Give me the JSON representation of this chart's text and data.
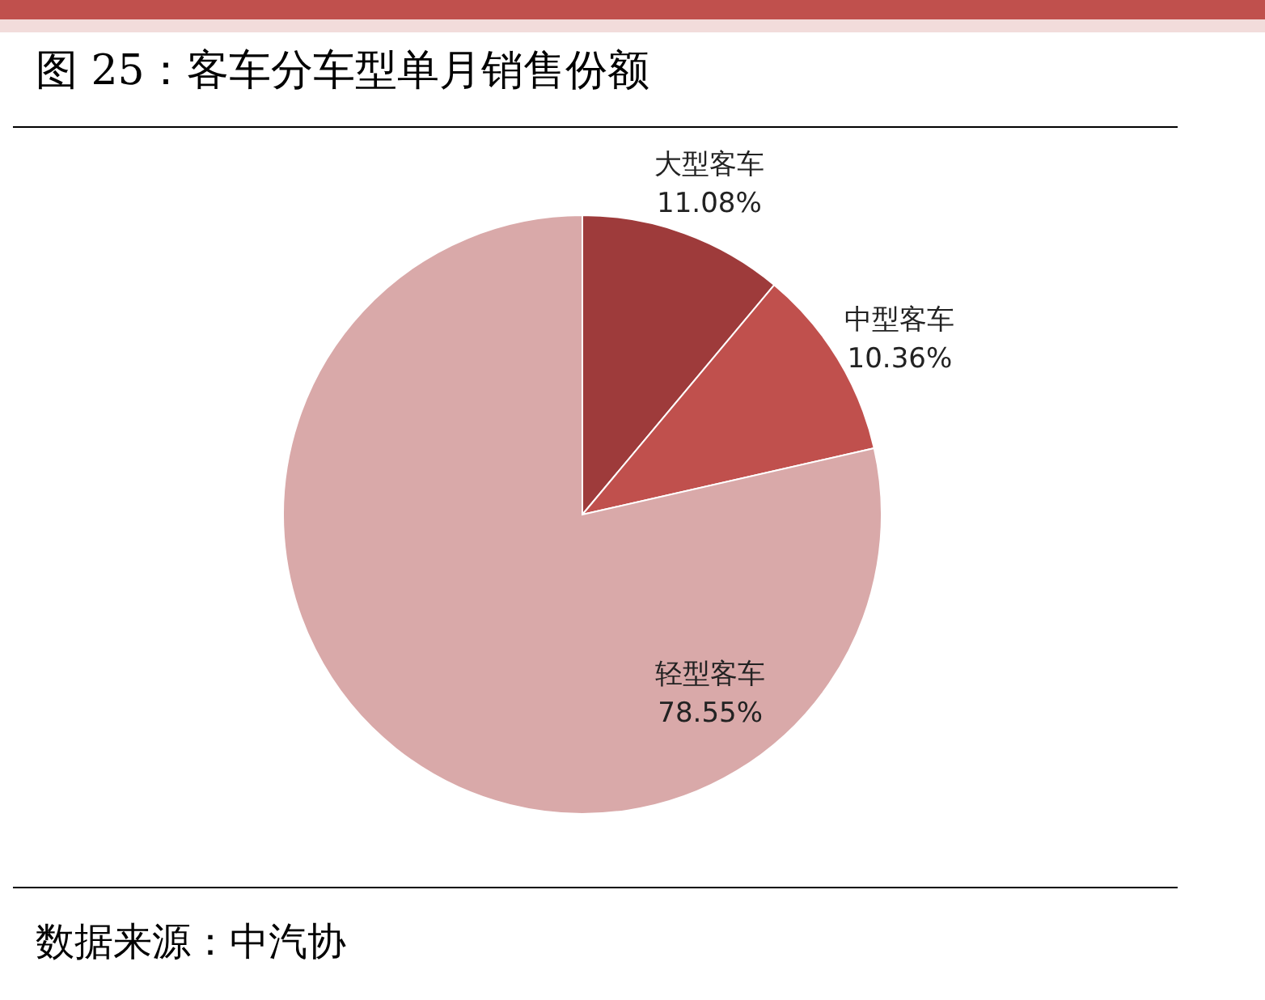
{
  "chart_data": {
    "type": "pie",
    "title": "图 25：客车分车型单月销售份额",
    "categories": [
      "大型客车",
      "中型客车",
      "轻型客车"
    ],
    "values": [
      11.08,
      10.36,
      78.55
    ],
    "colors": [
      "#9e3b3b",
      "#c0504d",
      "#d9a9a9"
    ],
    "value_labels": [
      "11.08%",
      "10.36%",
      "78.55%"
    ],
    "annotations": [
      "数据来源：中汽协"
    ]
  }
}
